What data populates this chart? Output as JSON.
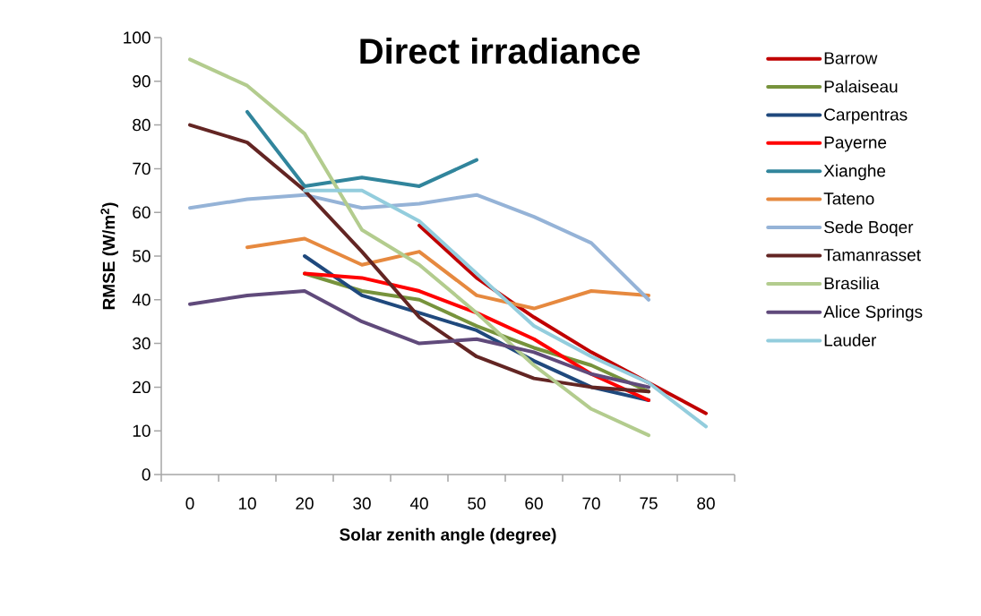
{
  "chart_data": {
    "type": "line",
    "title": "Direct irradiance",
    "xlabel": "Solar zenith angle (degree)",
    "ylabel": "RMSE (W/m$^{2}$)",
    "categories": [
      "0",
      "10",
      "20",
      "30",
      "40",
      "50",
      "60",
      "70",
      "75",
      "80"
    ],
    "ylim": [
      0,
      100
    ],
    "yticks": [
      0,
      10,
      20,
      30,
      40,
      50,
      60,
      70,
      80,
      90,
      100
    ],
    "legend": "right",
    "marker": "none",
    "line_style": "solid",
    "series": [
      {
        "name": "Barrow",
        "color": "#c00000",
        "values": [
          null,
          null,
          null,
          null,
          57,
          45,
          36,
          28,
          21,
          14
        ]
      },
      {
        "name": "Palaiseau",
        "color": "#77933c",
        "values": [
          null,
          null,
          46,
          42,
          40,
          34,
          29,
          25,
          19,
          null
        ]
      },
      {
        "name": "Carpentras",
        "color": "#1f497d",
        "values": [
          null,
          null,
          50,
          41,
          37,
          33,
          26,
          20,
          17,
          null
        ]
      },
      {
        "name": "Payerne",
        "color": "#ff0000",
        "values": [
          null,
          null,
          46,
          45,
          42,
          37,
          31,
          23,
          17,
          null
        ]
      },
      {
        "name": "Xianghe",
        "color": "#31859c",
        "values": [
          null,
          83,
          66,
          68,
          66,
          72,
          null,
          null,
          null,
          null
        ]
      },
      {
        "name": "Tateno",
        "color": "#e6893f",
        "values": [
          null,
          52,
          54,
          48,
          51,
          41,
          38,
          42,
          41,
          null
        ]
      },
      {
        "name": "Sede Boqer",
        "color": "#95b3d7",
        "values": [
          61,
          63,
          64,
          61,
          62,
          64,
          59,
          53,
          40,
          null
        ]
      },
      {
        "name": "Tamanrasset",
        "color": "#632523",
        "values": [
          80,
          76,
          65,
          51,
          36,
          27,
          22,
          20,
          19,
          null
        ]
      },
      {
        "name": "Brasilia",
        "color": "#b3cc8e",
        "values": [
          95,
          89,
          78,
          56,
          48,
          37,
          25,
          15,
          9,
          null
        ]
      },
      {
        "name": "Alice Springs",
        "color": "#604a7b",
        "values": [
          39,
          41,
          42,
          35,
          30,
          31,
          28,
          23,
          20,
          null
        ]
      },
      {
        "name": "Lauder",
        "color": "#93cddd",
        "values": [
          null,
          null,
          65,
          65,
          58,
          46,
          34,
          27,
          21,
          11
        ]
      }
    ]
  }
}
